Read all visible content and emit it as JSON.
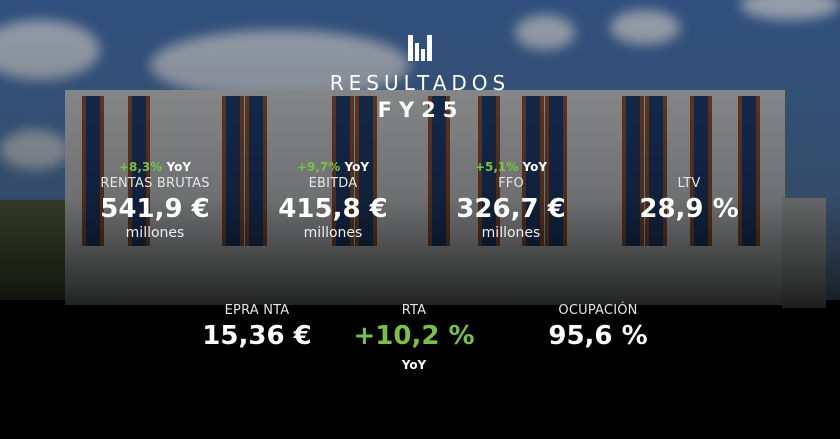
{
  "header": {
    "logo": "MERLIN Properties logo",
    "title": "RESULTADOS",
    "subtitle": "FY25"
  },
  "top_metrics": [
    {
      "change": "+8,3%",
      "yoy": "YoY",
      "label": "RENTAS BRUTAS",
      "value": "541,9 €",
      "unit": "millones"
    },
    {
      "change": "+9,7%",
      "yoy": "YoY",
      "label": "EBITDA",
      "value": "415,8 €",
      "unit": "millones"
    },
    {
      "change": "+5,1%",
      "yoy": "YoY",
      "label": "FFO",
      "value": "326,7 €",
      "unit": "millones"
    },
    {
      "label": "LTV",
      "value": "28,9 %"
    }
  ],
  "bottom_metrics": [
    {
      "label": "EPRA NTA",
      "value": "15,36 €"
    },
    {
      "label": "RTA",
      "value": "+10,2 %",
      "yoy": "YoY"
    },
    {
      "label": "OCUPACIÓN",
      "value": "95,6 %"
    }
  ],
  "colors": {
    "accent_green": "#7ac143",
    "text": "#ffffff"
  }
}
